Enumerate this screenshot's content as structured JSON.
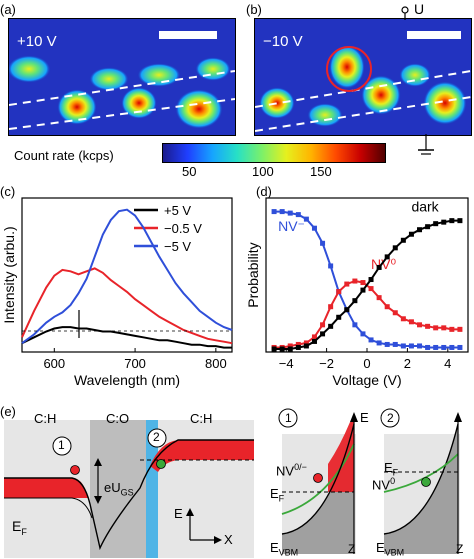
{
  "panels": {
    "a": {
      "label": "(a)",
      "voltage": "+10 V"
    },
    "b": {
      "label": "(b)",
      "voltage": "−10 V",
      "terminal": "U"
    },
    "c": {
      "label": "(c)"
    },
    "d": {
      "label": "(d)"
    },
    "e": {
      "label": "(e)"
    }
  },
  "colorbar": {
    "label": "Count rate (kcps)",
    "ticks": [
      "50",
      "100",
      "150"
    ]
  },
  "chart_data": [
    {
      "type": "line",
      "panel": "c",
      "xlabel": "Wavelength (nm)",
      "ylabel": "Intensity (arbu.)",
      "xlim": [
        560,
        820
      ],
      "xticks": [
        "600",
        "700",
        "800"
      ],
      "series": [
        {
          "name": "+5 V",
          "color": "#000000",
          "x": [
            560,
            575,
            590,
            600,
            610,
            620,
            630,
            640,
            650,
            660,
            670,
            680,
            690,
            700,
            710,
            720,
            730,
            740,
            750,
            760,
            770,
            780,
            790,
            800,
            810,
            820
          ],
          "y": [
            0.06,
            0.1,
            0.14,
            0.16,
            0.17,
            0.17,
            0.16,
            0.16,
            0.15,
            0.14,
            0.14,
            0.13,
            0.12,
            0.11,
            0.1,
            0.09,
            0.08,
            0.08,
            0.07,
            0.06,
            0.05,
            0.05,
            0.04,
            0.04,
            0.03,
            0.03
          ]
        },
        {
          "name": "−0.5 V",
          "color": "#e8242a",
          "x": [
            560,
            575,
            590,
            600,
            610,
            620,
            630,
            640,
            650,
            660,
            670,
            680,
            690,
            700,
            710,
            720,
            730,
            740,
            750,
            760,
            770,
            780,
            790,
            800,
            810,
            820
          ],
          "y": [
            0.1,
            0.28,
            0.44,
            0.52,
            0.56,
            0.55,
            0.53,
            0.55,
            0.57,
            0.54,
            0.49,
            0.45,
            0.41,
            0.36,
            0.32,
            0.28,
            0.24,
            0.21,
            0.18,
            0.15,
            0.13,
            0.11,
            0.09,
            0.08,
            0.07,
            0.06
          ]
        },
        {
          "name": "−5 V",
          "color": "#2f4fd9",
          "x": [
            560,
            575,
            590,
            600,
            610,
            620,
            630,
            640,
            650,
            660,
            670,
            680,
            690,
            700,
            710,
            720,
            730,
            740,
            750,
            760,
            770,
            780,
            790,
            800,
            810,
            820
          ],
          "y": [
            0.06,
            0.12,
            0.2,
            0.24,
            0.27,
            0.32,
            0.4,
            0.5,
            0.65,
            0.8,
            0.9,
            0.96,
            0.97,
            0.93,
            0.85,
            0.75,
            0.65,
            0.56,
            0.47,
            0.4,
            0.34,
            0.28,
            0.24,
            0.2,
            0.17,
            0.15
          ]
        }
      ]
    },
    {
      "type": "line",
      "panel": "d",
      "xlabel": "Voltage (V)",
      "ylabel": "Probability",
      "xlim": [
        -5,
        5
      ],
      "xticks": [
        "−4",
        "−2",
        "0",
        "2",
        "4"
      ],
      "series": [
        {
          "name": "NV⁻",
          "color": "#2f4fd9",
          "x": [
            -4.6,
            -4.2,
            -3.8,
            -3.4,
            -3.0,
            -2.6,
            -2.2,
            -1.8,
            -1.4,
            -1.0,
            -0.6,
            -0.2,
            0.2,
            0.6,
            1.0,
            1.4,
            1.8,
            2.2,
            2.6,
            3.0,
            3.4,
            3.8,
            4.2,
            4.6
          ],
          "y": [
            0.93,
            0.93,
            0.92,
            0.91,
            0.88,
            0.82,
            0.72,
            0.57,
            0.4,
            0.28,
            0.18,
            0.12,
            0.08,
            0.06,
            0.05,
            0.05,
            0.04,
            0.04,
            0.04,
            0.03,
            0.03,
            0.03,
            0.03,
            0.03
          ]
        },
        {
          "name": "NV⁰",
          "color": "#e8242a",
          "x": [
            -4.6,
            -4.2,
            -3.8,
            -3.4,
            -3.0,
            -2.6,
            -2.2,
            -1.8,
            -1.4,
            -1.0,
            -0.6,
            -0.2,
            0.2,
            0.6,
            1.0,
            1.4,
            1.8,
            2.2,
            2.6,
            3.0,
            3.4,
            3.8,
            4.2,
            4.6
          ],
          "y": [
            0.03,
            0.03,
            0.04,
            0.05,
            0.06,
            0.1,
            0.18,
            0.3,
            0.4,
            0.45,
            0.47,
            0.46,
            0.42,
            0.36,
            0.3,
            0.26,
            0.22,
            0.2,
            0.18,
            0.17,
            0.16,
            0.16,
            0.15,
            0.15
          ]
        },
        {
          "name": "dark",
          "color": "#000000",
          "x": [
            -4.6,
            -4.2,
            -3.8,
            -3.4,
            -3.0,
            -2.6,
            -2.2,
            -1.8,
            -1.4,
            -1.0,
            -0.6,
            -0.2,
            0.2,
            0.6,
            1.0,
            1.4,
            1.8,
            2.2,
            2.6,
            3.0,
            3.4,
            3.8,
            4.2,
            4.6
          ],
          "y": [
            0.02,
            0.02,
            0.02,
            0.03,
            0.04,
            0.07,
            0.12,
            0.17,
            0.23,
            0.28,
            0.34,
            0.41,
            0.48,
            0.56,
            0.63,
            0.69,
            0.74,
            0.78,
            0.81,
            0.83,
            0.85,
            0.86,
            0.87,
            0.87
          ]
        }
      ]
    }
  ],
  "diagram": {
    "regions": [
      "C:H",
      "C:O",
      "C:H"
    ],
    "marker1": "1",
    "marker2": "2",
    "energy_gap": "eU",
    "energy_gap_sub": "GS",
    "fermi": "E",
    "fermi_sub": "F",
    "axis_e": "E",
    "axis_x": "X",
    "inset1": {
      "marker": "1",
      "axis_e": "E",
      "axis_z": "Z",
      "nv": "NV",
      "nv_sup": "0/−",
      "ef": "E",
      "ef_sub": "F",
      "evbm": "E",
      "evbm_sub": "VBM"
    },
    "inset2": {
      "marker": "2",
      "axis_z": "Z",
      "nv": "NV",
      "nv_sup": "0",
      "ef": "E",
      "ef_sub": "F",
      "evbm": "E",
      "evbm_sub": "VBM"
    }
  },
  "colors": {
    "blue": "#2f4fd9",
    "red": "#e8242a",
    "green": "#3aa83a",
    "cyan": "#4fb4e6",
    "gray": "#c8c8c8"
  }
}
